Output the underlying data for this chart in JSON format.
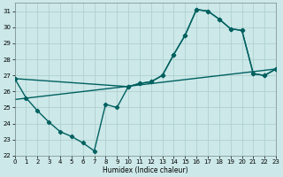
{
  "xlabel": "Humidex (Indice chaleur)",
  "xlim": [
    0,
    23
  ],
  "ylim": [
    22,
    31.5
  ],
  "xticks": [
    0,
    1,
    2,
    3,
    4,
    5,
    6,
    7,
    8,
    9,
    10,
    11,
    12,
    13,
    14,
    15,
    16,
    17,
    18,
    19,
    20,
    21,
    22,
    23
  ],
  "yticks": [
    22,
    23,
    24,
    25,
    26,
    27,
    28,
    29,
    30,
    31
  ],
  "bg_color": "#cce8e8",
  "grid_color": "#aacccc",
  "line_color": "#006060",
  "line1_x": [
    0,
    1,
    2,
    3,
    4,
    5,
    6,
    7,
    8,
    9,
    10,
    11,
    12,
    13,
    14,
    15,
    16,
    17,
    18,
    19,
    20,
    21,
    22,
    23
  ],
  "line1_y": [
    26.8,
    25.6,
    24.8,
    24.1,
    23.5,
    23.2,
    22.8,
    22.3,
    25.2,
    25.0,
    26.3,
    26.5,
    26.6,
    27.0,
    28.3,
    29.5,
    31.1,
    31.0,
    30.5,
    29.9,
    29.8,
    27.1,
    27.0,
    27.4
  ],
  "line2_x": [
    0,
    10,
    11,
    12,
    13,
    14,
    15,
    16,
    17,
    18,
    19,
    20,
    21,
    22,
    23
  ],
  "line2_y": [
    26.8,
    26.3,
    26.5,
    26.6,
    27.0,
    28.3,
    29.5,
    31.1,
    31.0,
    30.5,
    29.9,
    29.8,
    27.1,
    27.0,
    27.4
  ],
  "trend_x": [
    0,
    23
  ],
  "trend_y": [
    25.5,
    27.4
  ]
}
